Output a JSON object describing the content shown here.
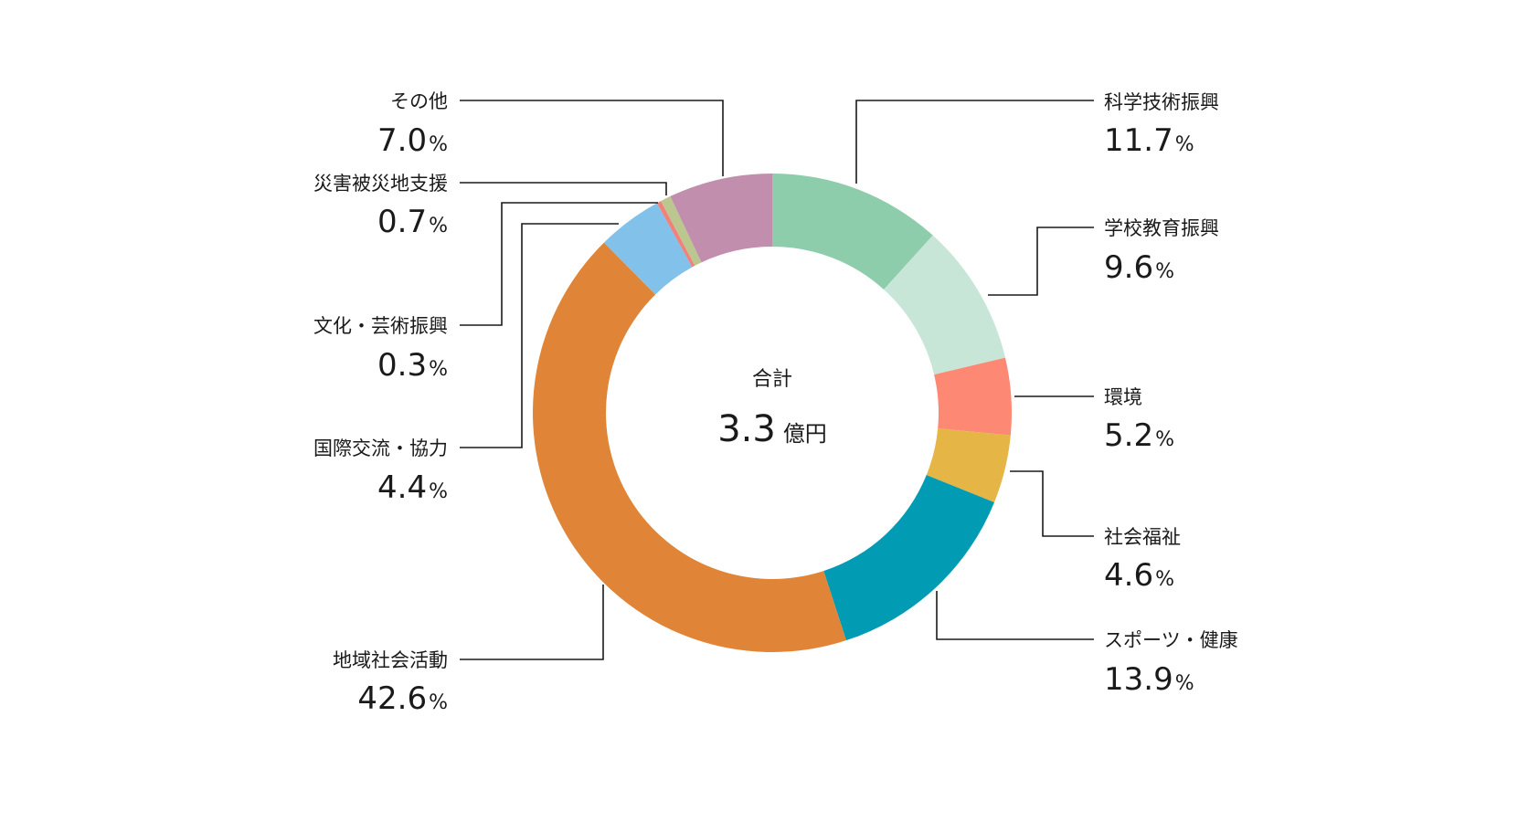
{
  "chart_data": {
    "type": "pie",
    "donut": true,
    "center": {
      "title": "合計",
      "value": "3.3",
      "unit": "億円"
    },
    "slices": [
      {
        "label": "科学技術振興",
        "value": 11.7,
        "color": "#8dcdab"
      },
      {
        "label": "学校教育振興",
        "value": 9.6,
        "color": "#c8e6d7"
      },
      {
        "label": "環境",
        "value": 5.2,
        "color": "#fd8873"
      },
      {
        "label": "社会福祉",
        "value": 4.6,
        "color": "#e5b545"
      },
      {
        "label": "スポーツ・健康",
        "value": 13.9,
        "color": "#019bb3"
      },
      {
        "label": "地域社会活動",
        "value": 42.6,
        "color": "#e08537"
      },
      {
        "label": "国際交流・協力",
        "value": 4.4,
        "color": "#82c1ea"
      },
      {
        "label": "文化・芸術振興",
        "value": 0.3,
        "color": "#f1817b"
      },
      {
        "label": "災害被災地支援",
        "value": 0.7,
        "color": "#bcc68f"
      },
      {
        "label": "その他",
        "value": 7.0,
        "color": "#c18ead"
      }
    ],
    "percent_suffix": "%"
  }
}
